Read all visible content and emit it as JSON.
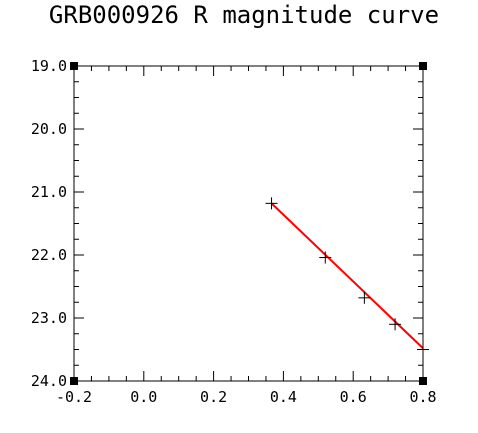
{
  "chart_data": {
    "type": "line",
    "title": "GRB000926 R magnitude curve",
    "xlabel": "",
    "ylabel": "",
    "xlim": [
      -0.2,
      0.8
    ],
    "ylim": [
      19.0,
      24.0
    ],
    "y_inverted": true,
    "x_ticks": [
      "-0.2",
      "0.0",
      "0.2",
      "0.4",
      "0.6",
      "0.8"
    ],
    "y_ticks": [
      "19.0",
      "20.0",
      "21.0",
      "22.0",
      "23.0",
      "24.0"
    ],
    "series": [
      {
        "color": "#ff0000",
        "x": [
          0.366,
          0.8
        ],
        "y": [
          21.18,
          23.48
        ]
      }
    ],
    "points": {
      "marker": "plus",
      "x": [
        0.366,
        0.52,
        0.632,
        0.72,
        0.8
      ],
      "y": [
        21.18,
        22.04,
        22.68,
        23.1,
        23.5
      ]
    },
    "grid": false,
    "legend": "none"
  }
}
